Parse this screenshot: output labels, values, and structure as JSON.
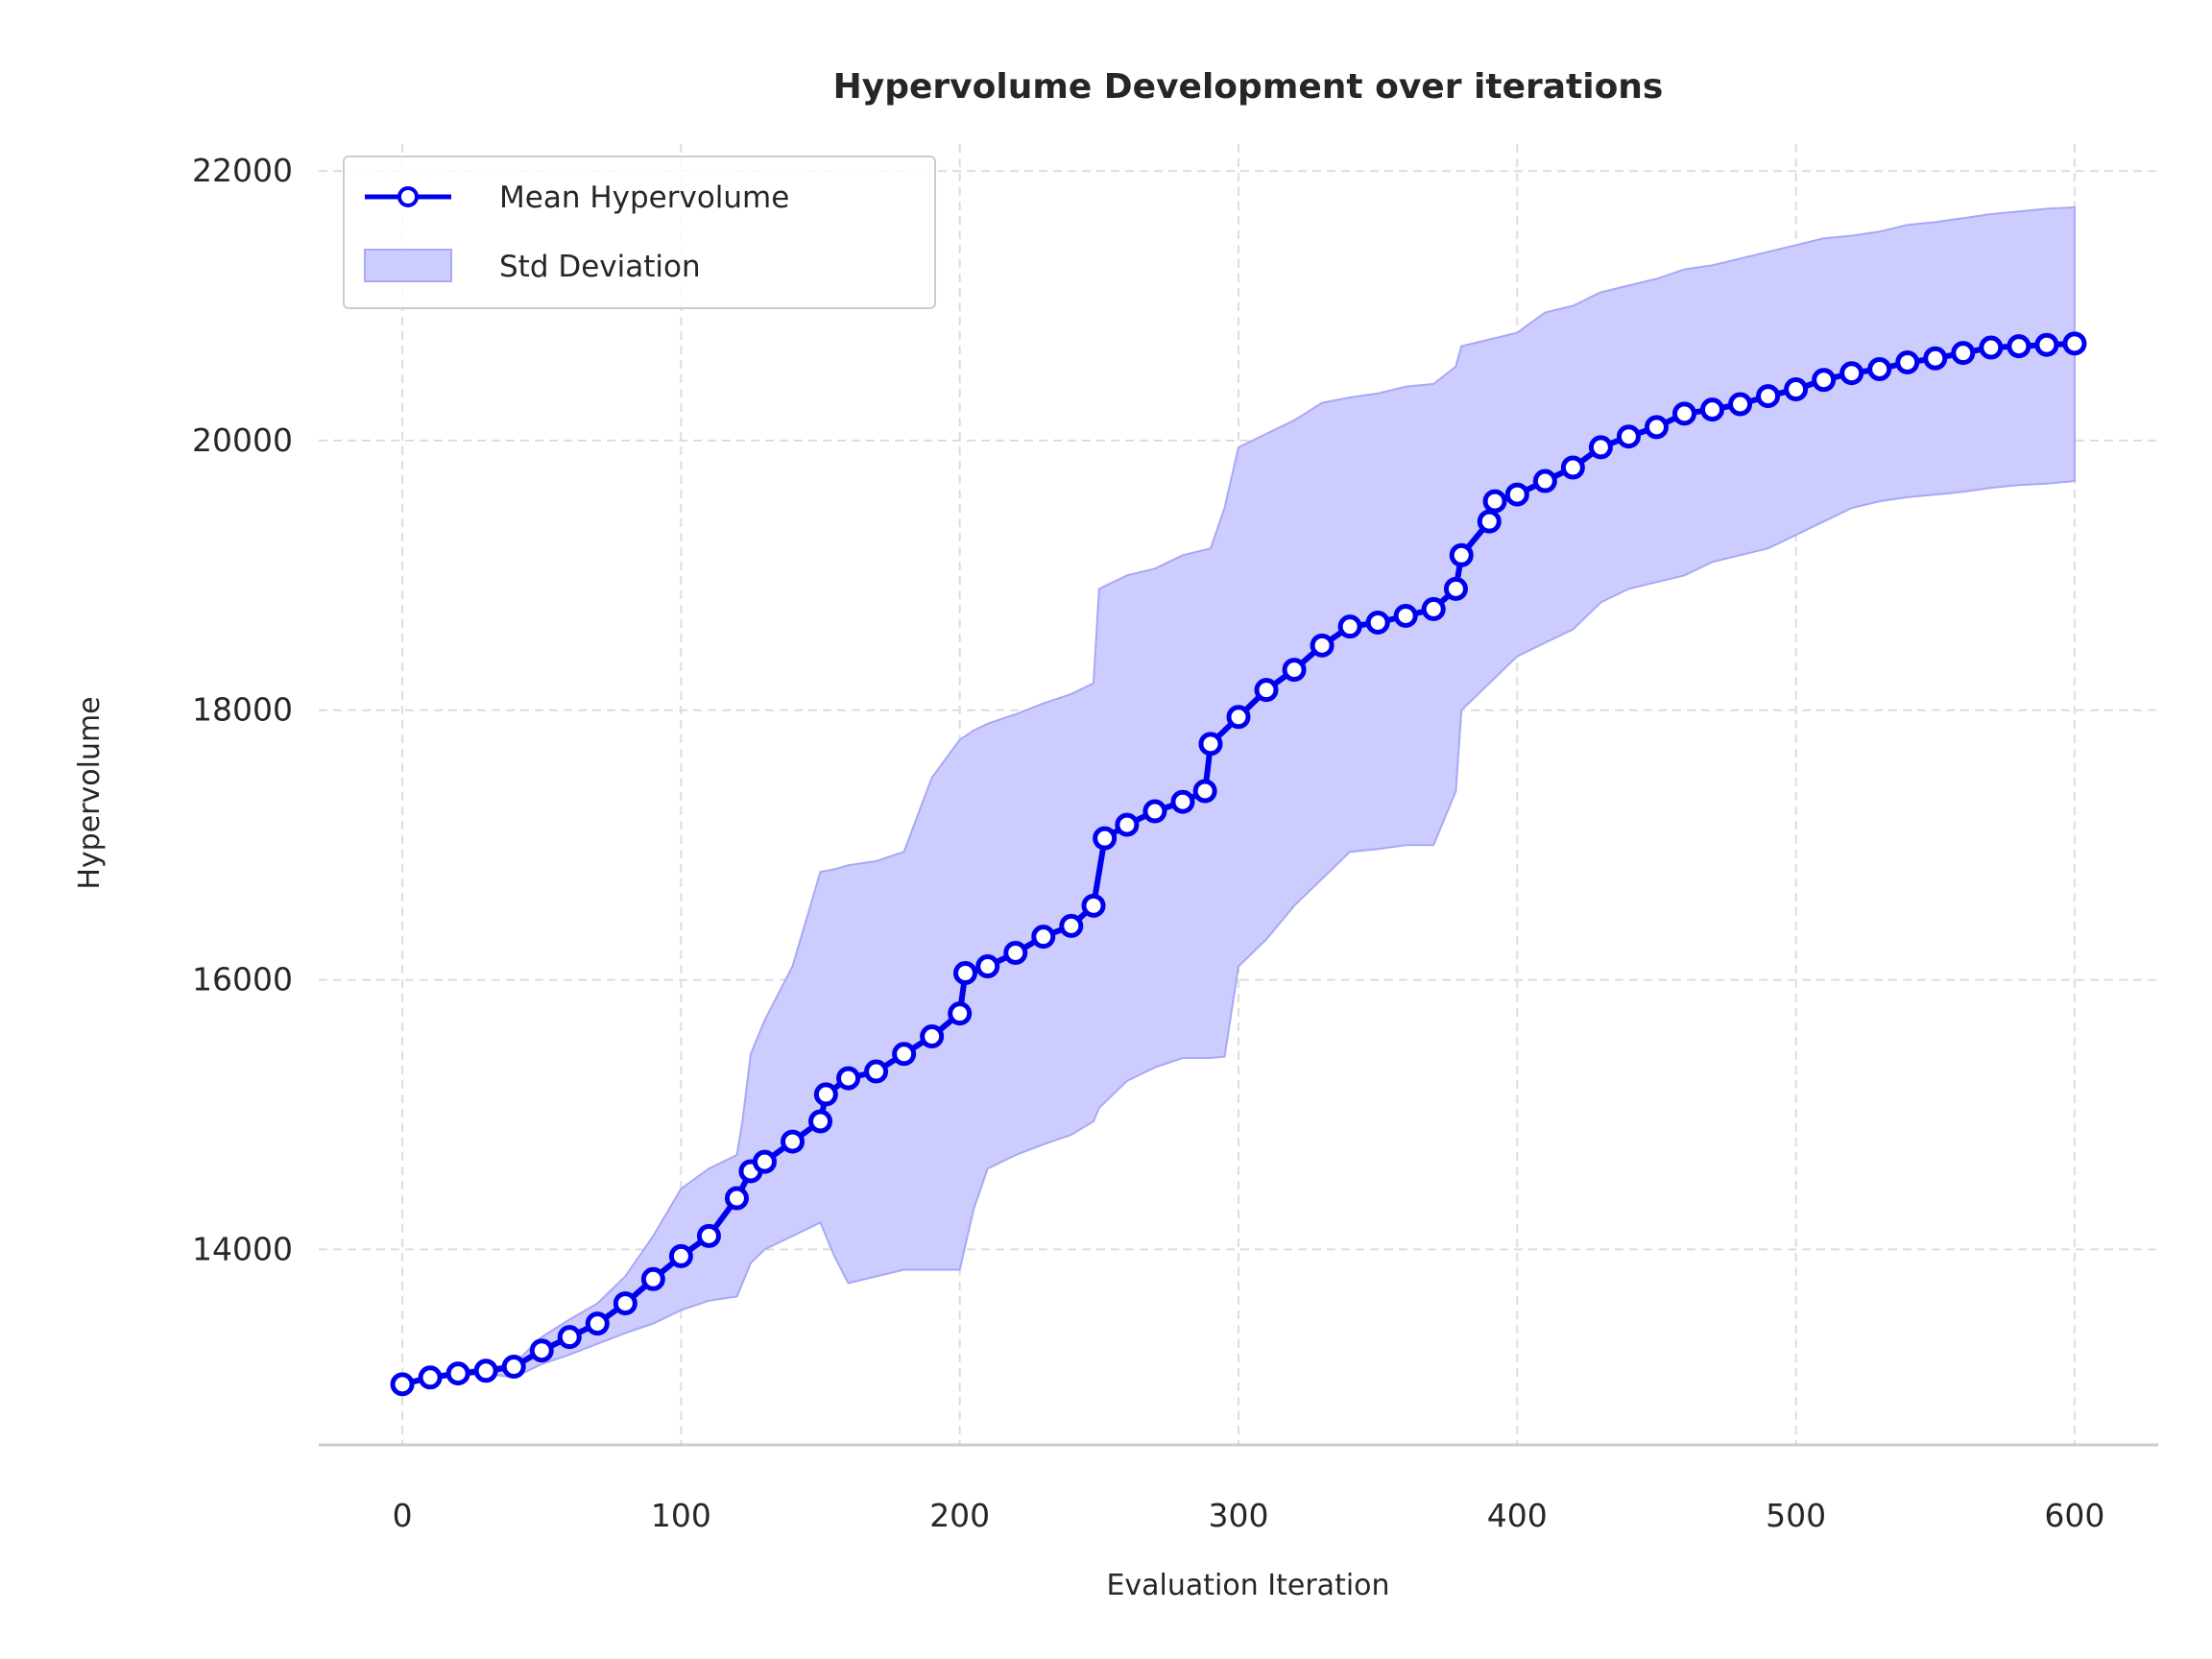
{
  "chart_data": {
    "type": "line",
    "title": "Hypervolume Development over iterations",
    "xlabel": "Evaluation Iteration",
    "ylabel": "Hypervolume",
    "xlim": [
      -30,
      630
    ],
    "ylim": [
      12550,
      22200
    ],
    "x_ticks": [
      0,
      100,
      200,
      300,
      400,
      500,
      600
    ],
    "y_ticks": [
      14000,
      16000,
      18000,
      20000,
      22000
    ],
    "grid": true,
    "legend_position": "top-left",
    "colors": {
      "mean": "#0000ee",
      "band": "#ccccff",
      "band_edge": "#a8a8f5"
    },
    "series": [
      {
        "name": "Mean Hypervolume",
        "style": "line-with-open-circle-markers",
        "x": [
          0,
          10,
          20,
          30,
          40,
          50,
          60,
          70,
          80,
          90,
          100,
          110,
          120,
          125,
          130,
          140,
          150,
          152,
          160,
          170,
          180,
          190,
          200,
          202,
          210,
          220,
          230,
          240,
          248,
          252,
          260,
          270,
          280,
          288,
          290,
          300,
          310,
          320,
          330,
          340,
          350,
          360,
          370,
          378,
          380,
          390,
          392,
          400,
          410,
          420,
          430,
          440,
          450,
          460,
          470,
          480,
          490,
          500,
          510,
          520,
          530,
          540,
          550,
          560,
          570,
          580,
          590,
          600
        ],
        "values": [
          13000,
          13050,
          13080,
          13100,
          13130,
          13250,
          13350,
          13450,
          13600,
          13780,
          13950,
          14100,
          14380,
          14580,
          14650,
          14800,
          14950,
          15150,
          15270,
          15320,
          15450,
          15580,
          15750,
          16050,
          16100,
          16200,
          16320,
          16400,
          16550,
          17050,
          17150,
          17250,
          17320,
          17400,
          17750,
          17950,
          18150,
          18300,
          18480,
          18620,
          18650,
          18700,
          18750,
          18900,
          19150,
          19400,
          19550,
          19600,
          19700,
          19800,
          19950,
          20030,
          20100,
          20200,
          20230,
          20270,
          20330,
          20380,
          20450,
          20500,
          20530,
          20580,
          20610,
          20650,
          20690,
          20700,
          20710,
          20720
        ]
      },
      {
        "name": "Std Deviation",
        "style": "filled-band",
        "x": [
          0,
          10,
          20,
          30,
          40,
          50,
          60,
          70,
          80,
          90,
          100,
          110,
          120,
          122,
          125,
          130,
          140,
          150,
          155,
          160,
          170,
          180,
          190,
          200,
          205,
          210,
          220,
          230,
          240,
          248,
          250,
          260,
          270,
          280,
          290,
          295,
          300,
          310,
          320,
          330,
          340,
          350,
          360,
          370,
          378,
          380,
          390,
          400,
          410,
          420,
          430,
          440,
          450,
          460,
          470,
          480,
          490,
          500,
          510,
          520,
          530,
          540,
          550,
          560,
          570,
          580,
          590,
          600
        ],
        "lower": [
          13000,
          13040,
          13060,
          13080,
          13050,
          13150,
          13220,
          13300,
          13380,
          13450,
          13550,
          13620,
          13650,
          13750,
          13900,
          14000,
          14100,
          14200,
          13950,
          13750,
          13800,
          13850,
          13850,
          13850,
          14300,
          14600,
          14700,
          14780,
          14850,
          14950,
          15050,
          15250,
          15350,
          15420,
          15420,
          15430,
          16100,
          16300,
          16550,
          16750,
          16950,
          16970,
          17000,
          17000,
          17400,
          18000,
          18200,
          18400,
          18500,
          18600,
          18800,
          18900,
          18950,
          19000,
          19100,
          19150,
          19200,
          19300,
          19400,
          19500,
          19550,
          19580,
          19600,
          19620,
          19650,
          19670,
          19680,
          19700
        ],
        "upper": [
          13000,
          13060,
          13100,
          13120,
          13150,
          13350,
          13480,
          13600,
          13800,
          14100,
          14450,
          14600,
          14700,
          14950,
          15450,
          15700,
          16100,
          16800,
          16820,
          16850,
          16880,
          16950,
          17500,
          17780,
          17850,
          17900,
          17970,
          18050,
          18120,
          18200,
          18900,
          19000,
          19050,
          19150,
          19200,
          19500,
          19950,
          20050,
          20150,
          20280,
          20320,
          20350,
          20400,
          20420,
          20550,
          20700,
          20750,
          20800,
          20950,
          21000,
          21100,
          21150,
          21200,
          21270,
          21300,
          21350,
          21400,
          21450,
          21500,
          21520,
          21550,
          21600,
          21620,
          21650,
          21680,
          21700,
          21720,
          21730
        ]
      }
    ]
  }
}
